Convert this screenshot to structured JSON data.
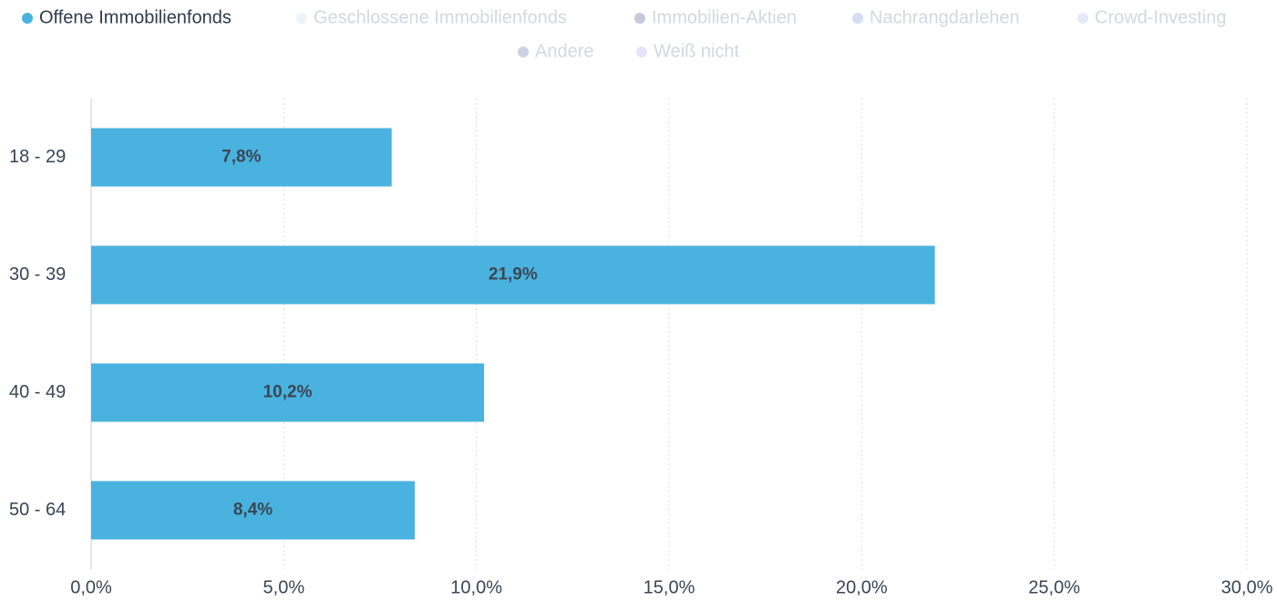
{
  "chart_data": {
    "type": "hbar",
    "categories": [
      "18 - 29",
      "30 - 39",
      "40 - 49",
      "50 - 64"
    ],
    "series": [
      {
        "name": "Offene Immobilienfonds",
        "color": "#4ab2de",
        "values": [
          7.8,
          21.9,
          10.2,
          8.4
        ],
        "value_labels": [
          "7,8%",
          "21,9%",
          "10,2%",
          "8,4%"
        ]
      },
      {
        "name": "Geschlossene Immobilienfonds",
        "color": "#eef3f8",
        "visible": false
      },
      {
        "name": "Immobilien-Aktien",
        "color": "#c5cad8",
        "visible": false
      },
      {
        "name": "Nachrangdarlehen",
        "color": "#d4dcf7",
        "visible": false
      },
      {
        "name": "Crowd-Investing",
        "color": "#e6eaf7",
        "visible": false
      },
      {
        "name": "Andere",
        "color": "#cfcfe6",
        "visible": false
      },
      {
        "name": "Weiß nicht",
        "color": "#e6e3f7",
        "visible": false
      }
    ],
    "xlim": [
      0,
      30
    ],
    "xticks": [
      {
        "value": 0,
        "label": "0,0%"
      },
      {
        "value": 5,
        "label": "5,0%"
      },
      {
        "value": 10,
        "label": "10,0%"
      },
      {
        "value": 15,
        "label": "15,0%"
      },
      {
        "value": 20,
        "label": "20,0%"
      },
      {
        "value": 25,
        "label": "25,0%"
      },
      {
        "value": 30,
        "label": "30,0%"
      }
    ],
    "grid": true,
    "legend": "top"
  }
}
